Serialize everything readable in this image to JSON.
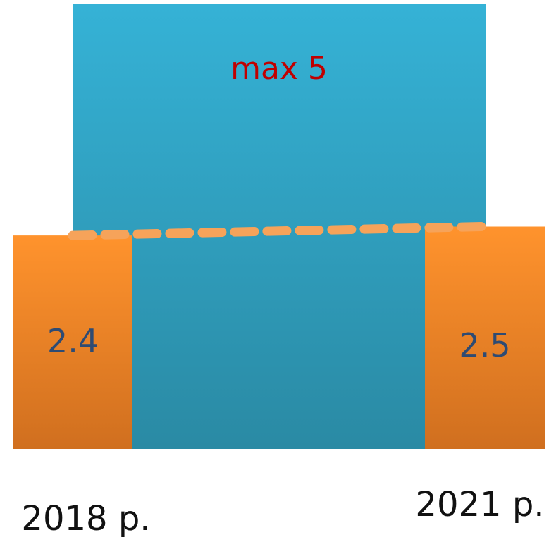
{
  "chart_data": {
    "type": "bar",
    "categories": [
      "2018 р.",
      "2021 р."
    ],
    "series": [
      {
        "values": [
          2.4,
          2.5
        ]
      }
    ],
    "max": {
      "label": "max 5",
      "value": 5
    },
    "ylim": [
      0,
      5
    ],
    "grid": false,
    "colors": {
      "max_top": "#35B2D6",
      "max_bottom": "#2A8AA4",
      "bar_top": "#FF932D",
      "bar_bottom": "#D06F1F",
      "value_text": "#2E4B73",
      "max_text": "#C00000",
      "dash_line": "#F6A35A",
      "category_text": "#111111"
    }
  }
}
